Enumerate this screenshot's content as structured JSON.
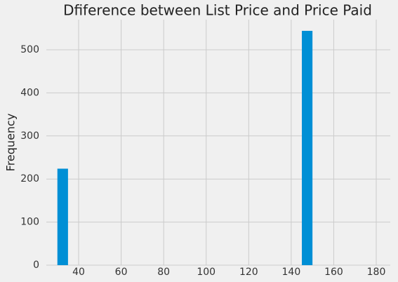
{
  "chart_data": {
    "type": "histogram",
    "title": "Dfiference between List Price and Price Paid",
    "y_label": "Frequency",
    "bins": [
      30,
      35,
      40,
      45,
      50,
      55,
      60,
      65,
      70,
      75,
      80,
      85,
      90,
      95,
      100,
      105,
      110,
      115,
      120,
      125,
      130,
      135,
      140,
      145,
      150,
      155,
      160,
      165,
      170,
      175,
      180
    ],
    "values": [
      224,
      0,
      0,
      0,
      0,
      0,
      0,
      0,
      0,
      0,
      0,
      0,
      0,
      0,
      0,
      0,
      0,
      0,
      0,
      0,
      0,
      0,
      0,
      544,
      0,
      0,
      0,
      0,
      0,
      0
    ],
    "color": "#008fd5",
    "xlim": [
      24.8,
      186.6
    ],
    "xticks": [
      40,
      60,
      80,
      100,
      120,
      140,
      160,
      180
    ],
    "ylim": [
      0,
      570
    ],
    "yticks": [
      0,
      100,
      200,
      300,
      400,
      500
    ],
    "grid": true
  }
}
